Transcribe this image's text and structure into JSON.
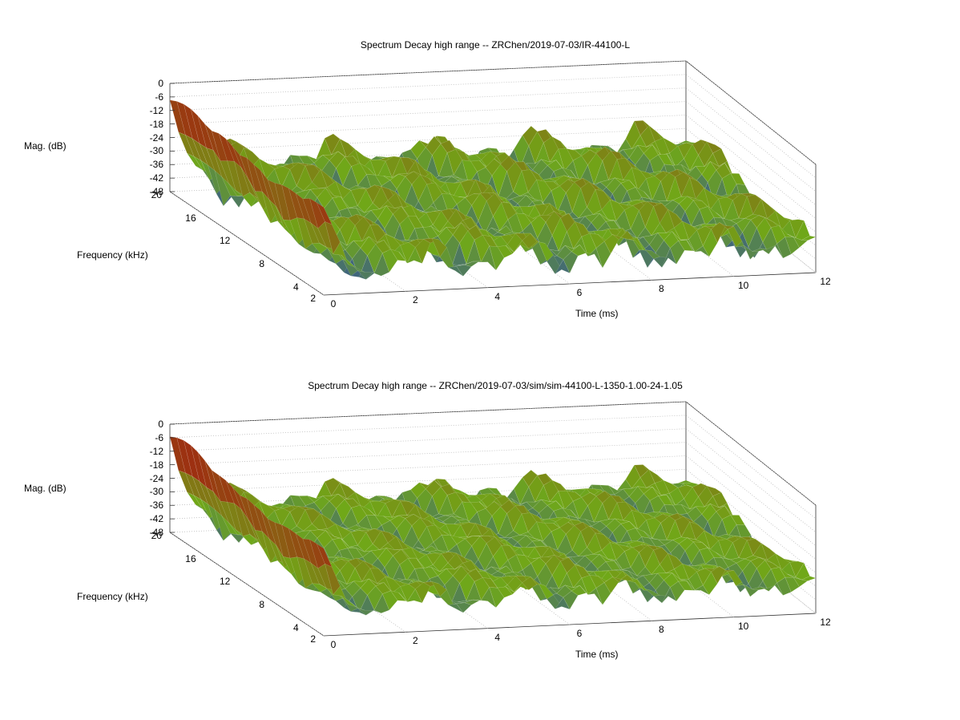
{
  "chart_data": [
    {
      "type": "surface",
      "title": "Spectrum Decay high range -- ZRChen/2019-07-03/IR-44100-L",
      "xlabel": "Time (ms)",
      "ylabel": "Frequency (kHz)",
      "zlabel": "Mag. (dB)",
      "xticks": [
        "0",
        "2",
        "4",
        "6",
        "8",
        "10",
        "12"
      ],
      "yticks": [
        "2",
        "4",
        "8",
        "12",
        "16",
        "20"
      ],
      "zticks": [
        "0",
        "-6",
        "-12",
        "-18",
        "-24",
        "-30",
        "-36",
        "-42",
        "-48"
      ],
      "xlim": [
        0,
        12
      ],
      "ylim": [
        2,
        20
      ],
      "zlim": [
        -48,
        0
      ],
      "peak": {
        "x": 0.2,
        "y": 18,
        "z": -5
      },
      "colors": {
        "low": "#2a48a8",
        "mid": "#70a818",
        "high": "#a02810"
      }
    },
    {
      "type": "surface",
      "title": "Spectrum Decay high range -- ZRChen/2019-07-03/sim/sim-44100-L-1350-1.00-24-1.05",
      "xlabel": "Time (ms)",
      "ylabel": "Frequency (kHz)",
      "zlabel": "Mag. (dB)",
      "xticks": [
        "0",
        "2",
        "4",
        "6",
        "8",
        "10",
        "12"
      ],
      "yticks": [
        "2",
        "4",
        "8",
        "12",
        "16",
        "20"
      ],
      "zticks": [
        "0",
        "-6",
        "-12",
        "-18",
        "-24",
        "-30",
        "-36",
        "-42",
        "-48"
      ],
      "xlim": [
        0,
        12
      ],
      "ylim": [
        2,
        20
      ],
      "zlim": [
        -48,
        0
      ],
      "peak": {
        "x": 0.2,
        "y": 18,
        "z": -3
      },
      "colors": {
        "low": "#2a48a8",
        "mid": "#70a818",
        "high": "#a02810"
      }
    }
  ]
}
